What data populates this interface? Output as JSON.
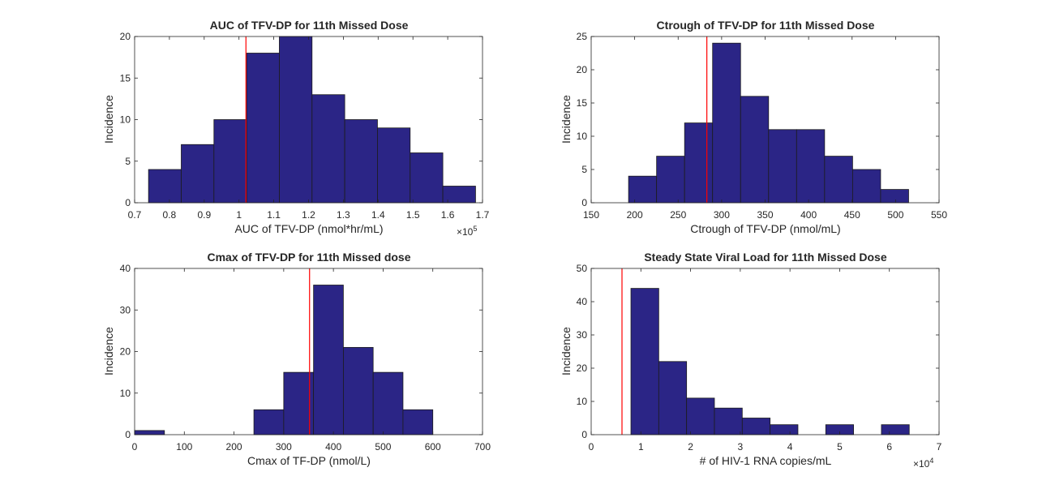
{
  "colors": {
    "bar_fill": "#2b2586",
    "bar_edge": "#1c1c1c",
    "ref_line": "#ff0000",
    "axis": "#262626",
    "background": "#ffffff"
  },
  "chart_data": [
    {
      "type": "bar",
      "title": "AUC of TFV-DP for 11th Missed Dose",
      "xlabel": "AUC of TFV-DP (nmol*hr/mL)",
      "ylabel": "Incidence",
      "x_multiplier_label": "×10",
      "x_multiplier_exp": "5",
      "xlim": [
        0.7,
        1.7
      ],
      "ylim": [
        0,
        20
      ],
      "xticks": [
        0.7,
        0.8,
        0.9,
        1,
        1.1,
        1.2,
        1.3,
        1.4,
        1.5,
        1.6,
        1.7
      ],
      "xtick_labels": [
        "0.7",
        "0.8",
        "0.9",
        "1",
        "1.1",
        "1.2",
        "1.3",
        "1.4",
        "1.5",
        "1.6",
        "1.7"
      ],
      "yticks": [
        0,
        5,
        10,
        15,
        20
      ],
      "ytick_labels": [
        "0",
        "5",
        "10",
        "15",
        "20"
      ],
      "bin_edges": [
        0.74,
        0.834,
        0.928,
        1.022,
        1.116,
        1.21,
        1.304,
        1.398,
        1.492,
        1.586,
        1.68
      ],
      "values": [
        4,
        7,
        10,
        18,
        20,
        13,
        10,
        9,
        6,
        2
      ],
      "ref_x": 1.02,
      "grid": false
    },
    {
      "type": "bar",
      "title": "Ctrough of TFV-DP for 11th Missed Dose",
      "xlabel": "Ctrough of TFV-DP (nmol/mL)",
      "ylabel": "Incidence",
      "xlim": [
        150,
        550
      ],
      "ylim": [
        0,
        25
      ],
      "xticks": [
        150,
        200,
        250,
        300,
        350,
        400,
        450,
        500,
        550
      ],
      "xtick_labels": [
        "150",
        "200",
        "250",
        "300",
        "350",
        "400",
        "450",
        "500",
        "550"
      ],
      "yticks": [
        0,
        5,
        10,
        15,
        20,
        25
      ],
      "ytick_labels": [
        "0",
        "5",
        "10",
        "15",
        "20",
        "25"
      ],
      "bin_edges": [
        193,
        225.2,
        257.4,
        289.6,
        321.8,
        354,
        386.2,
        418.4,
        450.6,
        482.8,
        515
      ],
      "values": [
        4,
        7,
        12,
        24,
        16,
        11,
        11,
        7,
        5,
        2
      ],
      "ref_x": 283,
      "grid": false
    },
    {
      "type": "bar",
      "title": "Cmax of TFV-DP for 11th Missed dose",
      "xlabel": "Cmax of TF-DP (nmol/L)",
      "ylabel": "Incidence",
      "xlim": [
        0,
        700
      ],
      "ylim": [
        0,
        40
      ],
      "xticks": [
        0,
        100,
        200,
        300,
        400,
        500,
        600,
        700
      ],
      "xtick_labels": [
        "0",
        "100",
        "200",
        "300",
        "400",
        "500",
        "600",
        "700"
      ],
      "yticks": [
        0,
        10,
        20,
        30,
        40
      ],
      "ytick_labels": [
        "0",
        "10",
        "20",
        "30",
        "40"
      ],
      "bin_edges": [
        0,
        60,
        120,
        180,
        240,
        300,
        360,
        420,
        480,
        540,
        600
      ],
      "values": [
        1,
        0,
        0,
        0,
        6,
        15,
        36,
        21,
        15,
        6
      ],
      "ref_x": 352,
      "grid": false
    },
    {
      "type": "bar",
      "title": "Steady State Viral Load for 11th Missed Dose",
      "xlabel": "# of HIV-1 RNA copies/mL",
      "ylabel": "Incidence",
      "x_multiplier_label": "×10",
      "x_multiplier_exp": "4",
      "xlim": [
        0,
        7
      ],
      "ylim": [
        0,
        50
      ],
      "xticks": [
        0,
        1,
        2,
        3,
        4,
        5,
        6,
        7
      ],
      "xtick_labels": [
        "0",
        "1",
        "2",
        "3",
        "4",
        "5",
        "6",
        "7"
      ],
      "yticks": [
        0,
        10,
        20,
        30,
        40,
        50
      ],
      "ytick_labels": [
        "0",
        "10",
        "20",
        "30",
        "40",
        "50"
      ],
      "bin_edges": [
        0.8,
        1.36,
        1.92,
        2.48,
        3.04,
        3.6,
        4.16,
        4.72,
        5.28,
        5.84,
        6.4
      ],
      "values": [
        44,
        22,
        11,
        8,
        5,
        3,
        0,
        3,
        0,
        3
      ],
      "ref_x": 0.62,
      "grid": false
    }
  ]
}
